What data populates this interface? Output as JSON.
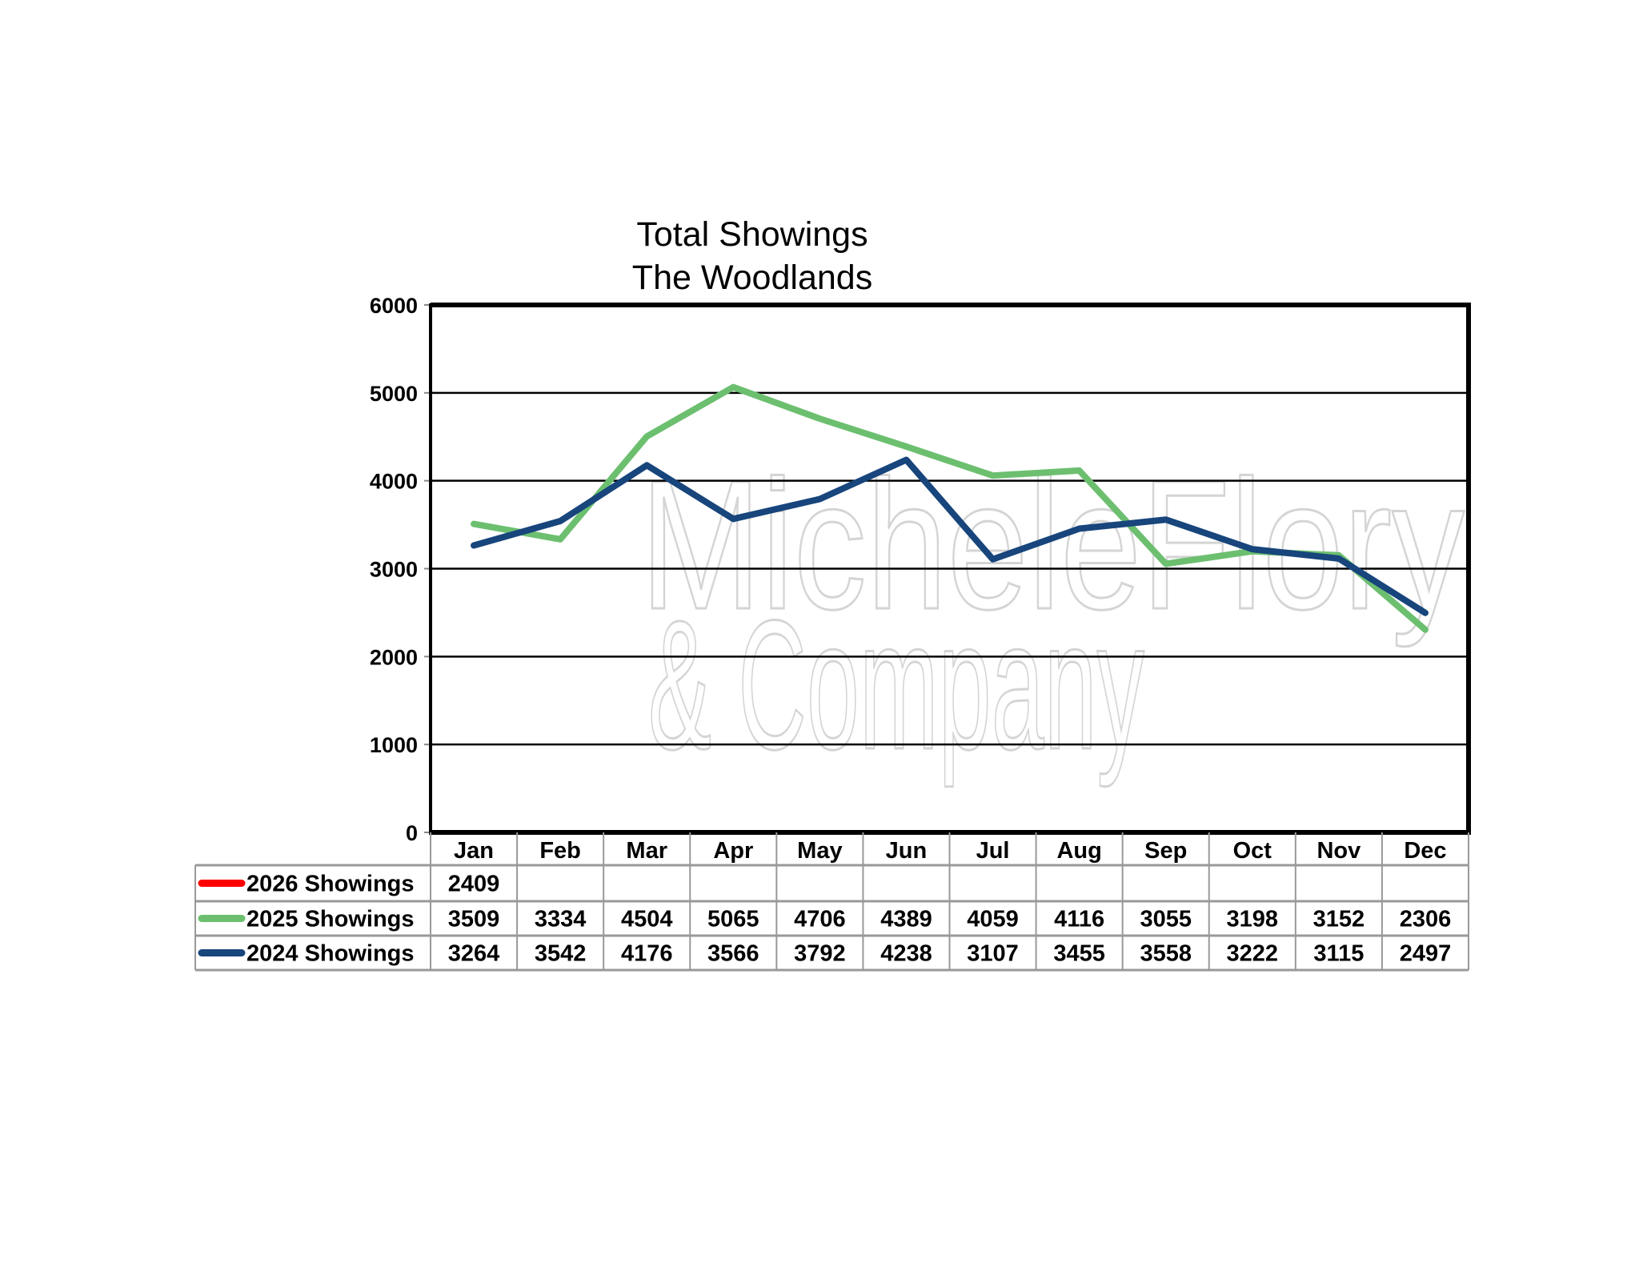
{
  "chart_data": {
    "type": "line",
    "title": "Total Showings",
    "subtitle": "The Woodlands",
    "watermark": "Michele Flory & Company",
    "categories": [
      "Jan",
      "Feb",
      "Mar",
      "Apr",
      "May",
      "Jun",
      "Jul",
      "Aug",
      "Sep",
      "Oct",
      "Nov",
      "Dec"
    ],
    "ylim": [
      0,
      6000
    ],
    "yticks": [
      0,
      1000,
      2000,
      3000,
      4000,
      5000,
      6000
    ],
    "grid": true,
    "legend": "data-table-below",
    "series": [
      {
        "name": "2026 Showings",
        "color": "#ff0000",
        "values": [
          2409,
          null,
          null,
          null,
          null,
          null,
          null,
          null,
          null,
          null,
          null,
          null
        ]
      },
      {
        "name": "2025 Showings",
        "color": "#6cbf6f",
        "values": [
          3509,
          3334,
          4504,
          5065,
          4706,
          4389,
          4059,
          4116,
          3055,
          3198,
          3152,
          2306
        ]
      },
      {
        "name": "2024 Showings",
        "color": "#17457c",
        "values": [
          3264,
          3542,
          4176,
          3566,
          3792,
          4238,
          3107,
          3455,
          3558,
          3222,
          3115,
          2497
        ]
      }
    ]
  }
}
